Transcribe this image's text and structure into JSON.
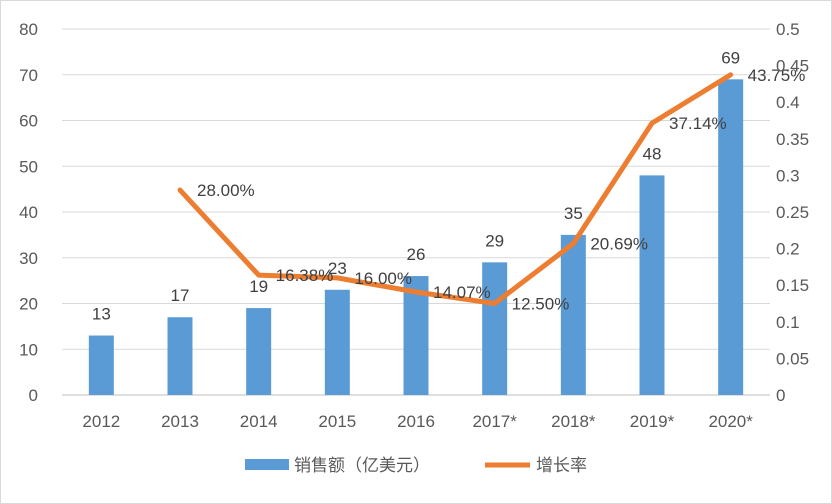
{
  "chart_data": {
    "type": "bar+line",
    "categories": [
      "2012",
      "2013",
      "2014",
      "2015",
      "2016",
      "2017*",
      "2018*",
      "2019*",
      "2020*"
    ],
    "series": [
      {
        "name": "销售额（亿美元）",
        "type": "bar",
        "axis": "left",
        "color": "#5b9bd5",
        "values": [
          13,
          17,
          19,
          23,
          26,
          29,
          35,
          48,
          69
        ],
        "labels": [
          "13",
          "17",
          "19",
          "23",
          "26",
          "29",
          "35",
          "48",
          "69"
        ]
      },
      {
        "name": "增长率",
        "type": "line",
        "axis": "right",
        "color": "#ed7d31",
        "values": [
          null,
          0.28,
          0.1638,
          0.16,
          0.1407,
          0.125,
          0.2069,
          0.3714,
          0.4375
        ],
        "labels": [
          "",
          "28.00%",
          "16.38%",
          "16.00%",
          "14.07%",
          "12.50%",
          "20.69%",
          "37.14%",
          "43.75%"
        ]
      }
    ],
    "y_left": {
      "range": [
        0,
        80
      ],
      "ticks": [
        "0",
        "10",
        "20",
        "30",
        "40",
        "50",
        "60",
        "70",
        "80"
      ]
    },
    "y_right": {
      "range": [
        0,
        0.5
      ],
      "ticks": [
        "0",
        "0.05",
        "0.1",
        "0.15",
        "0.2",
        "0.25",
        "0.3",
        "0.35",
        "0.4",
        "0.45",
        "0.5"
      ]
    },
    "grid": true,
    "legend": "bottom-center"
  }
}
